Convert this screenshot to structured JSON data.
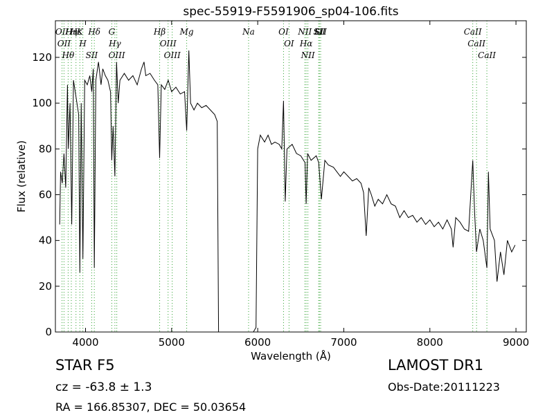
{
  "chart_data": {
    "type": "line",
    "title": "spec-55919-F5591906_sp04-106.fits",
    "x_label": "Wavelength (Å)",
    "y_label": "Flux (relative)",
    "xlim": [
      3650,
      9120
    ],
    "ylim": [
      0,
      136
    ],
    "xticks": [
      4000,
      5000,
      6000,
      7000,
      8000,
      9000
    ],
    "yticks": [
      0,
      20,
      40,
      60,
      80,
      100,
      120
    ],
    "color": "#000000",
    "line_color": "#2ca02c",
    "series": [
      {
        "name": "spectrum",
        "x": [
          3700,
          3710,
          3730,
          3750,
          3770,
          3790,
          3800,
          3820,
          3840,
          3860,
          3880,
          3900,
          3920,
          3934,
          3950,
          3969,
          3990,
          4020,
          4050,
          4072,
          4090,
          4102,
          4120,
          4150,
          4180,
          4200,
          4230,
          4260,
          4290,
          4305,
          4320,
          4341,
          4360,
          4380,
          4400,
          4450,
          4500,
          4550,
          4600,
          4650,
          4680,
          4700,
          4750,
          4800,
          4840,
          4861,
          4880,
          4920,
          4960,
          5000,
          5050,
          5100,
          5150,
          5175,
          5200,
          5220,
          5260,
          5300,
          5350,
          5400,
          5450,
          5500,
          5530,
          5545,
          5950,
          5980,
          6000,
          6030,
          6080,
          6120,
          6160,
          6200,
          6250,
          6280,
          6300,
          6320,
          6340,
          6400,
          6450,
          6500,
          6550,
          6563,
          6580,
          6620,
          6680,
          6708,
          6740,
          6780,
          6820,
          6880,
          6920,
          6960,
          7000,
          7050,
          7100,
          7150,
          7200,
          7230,
          7260,
          7290,
          7320,
          7360,
          7400,
          7450,
          7500,
          7550,
          7600,
          7650,
          7700,
          7750,
          7800,
          7850,
          7900,
          7950,
          8000,
          8050,
          8100,
          8150,
          8200,
          8250,
          8270,
          8300,
          8350,
          8400,
          8450,
          8498,
          8520,
          8542,
          8580,
          8620,
          8662,
          8680,
          8700,
          8750,
          8780,
          8820,
          8860,
          8900,
          8950,
          8990
        ],
        "values": [
          47,
          70,
          65,
          78,
          63,
          108,
          80,
          100,
          47,
          110,
          105,
          100,
          95,
          26,
          100,
          32,
          110,
          108,
          112,
          105,
          115,
          28,
          110,
          118,
          108,
          115,
          112,
          110,
          105,
          75,
          90,
          68,
          118,
          100,
          110,
          113,
          110,
          112,
          108,
          115,
          118,
          112,
          113,
          110,
          108,
          76,
          108,
          106,
          110,
          105,
          107,
          104,
          105,
          88,
          123,
          100,
          97,
          100,
          98,
          99,
          97,
          95,
          92,
          0,
          0,
          2,
          80,
          86,
          83,
          86,
          82,
          83,
          82,
          80,
          101,
          57,
          80,
          82,
          78,
          77,
          74,
          56,
          78,
          75,
          77,
          74,
          58,
          75,
          73,
          72,
          70,
          68,
          70,
          68,
          66,
          67,
          65,
          61,
          42,
          63,
          60,
          55,
          58,
          56,
          60,
          56,
          55,
          50,
          53,
          50,
          51,
          48,
          50,
          47,
          49,
          46,
          48,
          45,
          49,
          45,
          37,
          50,
          48,
          45,
          44,
          75,
          52,
          35,
          45,
          40,
          28,
          70,
          45,
          40,
          22,
          35,
          25,
          40,
          35,
          38
        ]
      }
    ],
    "lines": [
      {
        "wavelength": 3727,
        "label": "OII"
      },
      {
        "wavelength": 3750,
        "label": "OII"
      },
      {
        "wavelength": 3798,
        "label": "Hθ"
      },
      {
        "wavelength": 3835,
        "label": "Hη"
      },
      {
        "wavelength": 3889,
        "label": "Hε"
      },
      {
        "wavelength": 3934,
        "label": "K"
      },
      {
        "wavelength": 3969,
        "label": "H"
      },
      {
        "wavelength": 4072,
        "label": "SII"
      },
      {
        "wavelength": 4102,
        "label": "Hδ"
      },
      {
        "wavelength": 4305,
        "label": "G"
      },
      {
        "wavelength": 4341,
        "label": "Hγ"
      },
      {
        "wavelength": 4363,
        "label": "OIII"
      },
      {
        "wavelength": 4861,
        "label": "Hβ"
      },
      {
        "wavelength": 4959,
        "label": "OIII"
      },
      {
        "wavelength": 5007,
        "label": "OIII"
      },
      {
        "wavelength": 5175,
        "label": "Mg"
      },
      {
        "wavelength": 5894,
        "label": "Na"
      },
      {
        "wavelength": 6300,
        "label": "OI"
      },
      {
        "wavelength": 6364,
        "label": "OI"
      },
      {
        "wavelength": 6548,
        "label": "NII"
      },
      {
        "wavelength": 6563,
        "label": "Hα"
      },
      {
        "wavelength": 6583,
        "label": "NII"
      },
      {
        "wavelength": 6708,
        "label": "Li"
      },
      {
        "wavelength": 6717,
        "label": "SII"
      },
      {
        "wavelength": 6731,
        "label": "SII"
      },
      {
        "wavelength": 8498,
        "label": "CaII"
      },
      {
        "wavelength": 8542,
        "label": "CaII"
      },
      {
        "wavelength": 8662,
        "label": "CaII"
      }
    ],
    "footer": {
      "object": "STAR   F5",
      "survey": "LAMOST DR1",
      "cz": "cz = -63.8 ± 1.3",
      "date": "Obs-Date:20111223",
      "coords": "RA = 166.85307, DEC = 50.03654"
    }
  }
}
